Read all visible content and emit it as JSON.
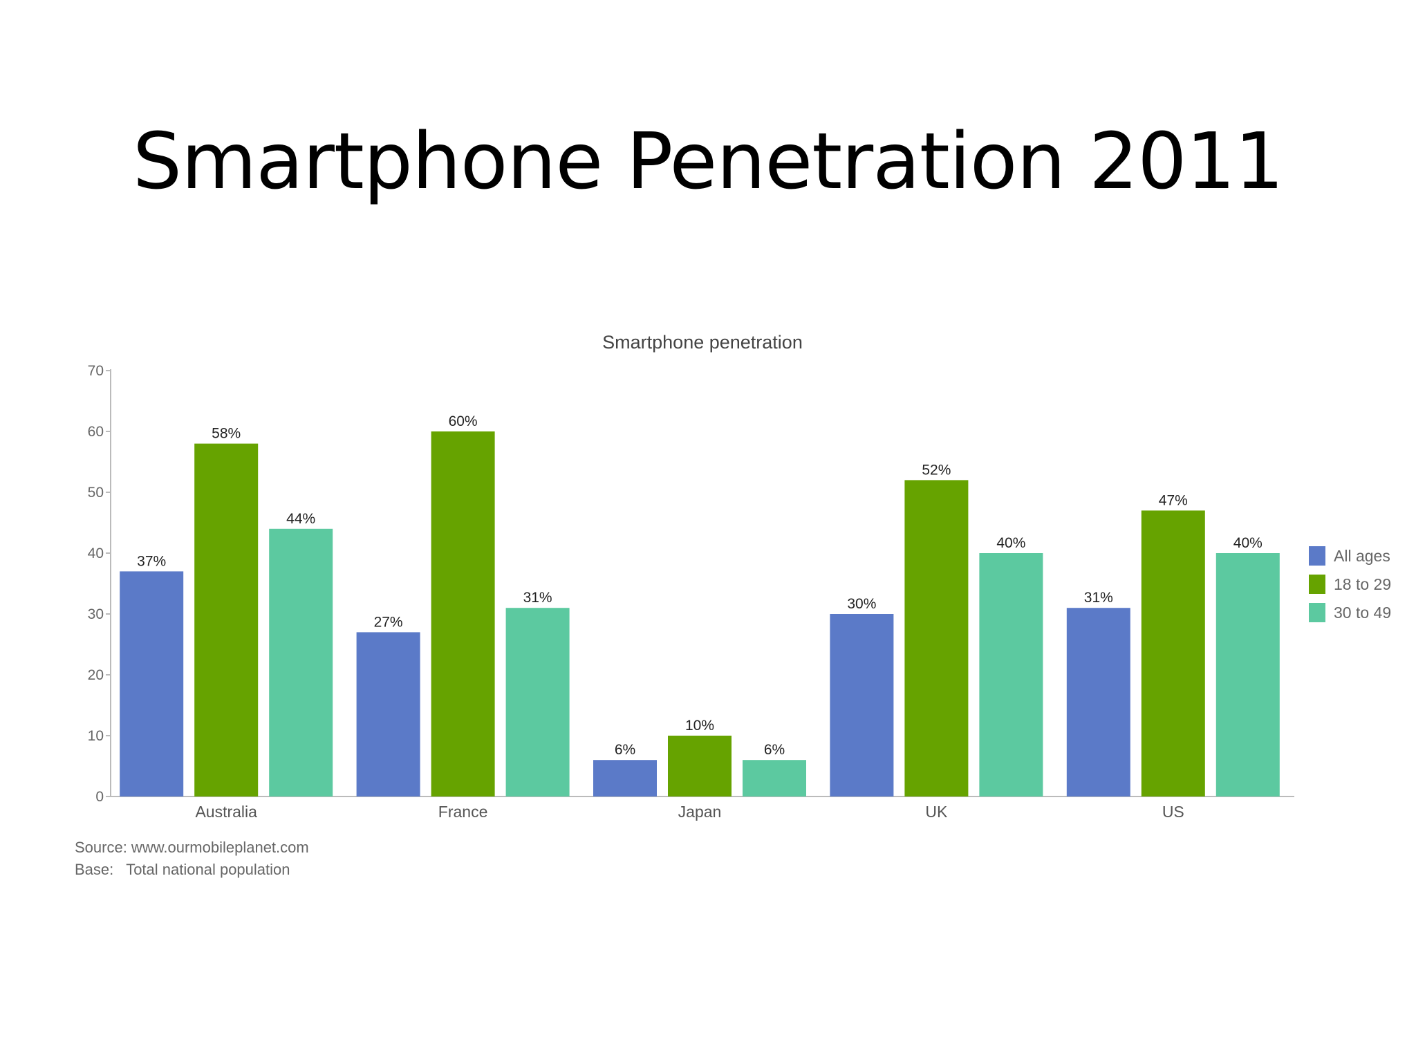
{
  "slide": {
    "title": "Smartphone Penetration 2011"
  },
  "footnote": {
    "source": "Source: www.ourmobileplanet.com",
    "base": "Base:   Total national population"
  },
  "colors": {
    "all_ages": "#5B7AC8",
    "age_18_29": "#66A300",
    "age_30_49": "#5CC9A0",
    "axis": "#bbbbbb"
  },
  "chart_data": {
    "type": "bar",
    "title": "Smartphone penetration",
    "xlabel": "",
    "ylabel": "",
    "ylim": [
      0,
      70
    ],
    "yticks": [
      0,
      10,
      20,
      30,
      40,
      50,
      60,
      70
    ],
    "grid": false,
    "legend_position": "right",
    "categories": [
      "Australia",
      "France",
      "Japan",
      "UK",
      "US"
    ],
    "series": [
      {
        "name": "All ages",
        "color": "#5B7AC8",
        "values": [
          37,
          27,
          6,
          30,
          31
        ],
        "labels": [
          "37%",
          "27%",
          "6%",
          "30%",
          "31%"
        ]
      },
      {
        "name": "18 to 29",
        "color": "#66A300",
        "values": [
          58,
          60,
          10,
          52,
          47
        ],
        "labels": [
          "58%",
          "60%",
          "10%",
          "52%",
          "47%"
        ]
      },
      {
        "name": "30 to 49",
        "color": "#5CC9A0",
        "values": [
          44,
          31,
          6,
          40,
          40
        ],
        "labels": [
          "44%",
          "31%",
          "6%",
          "40%",
          "40%"
        ]
      }
    ]
  }
}
